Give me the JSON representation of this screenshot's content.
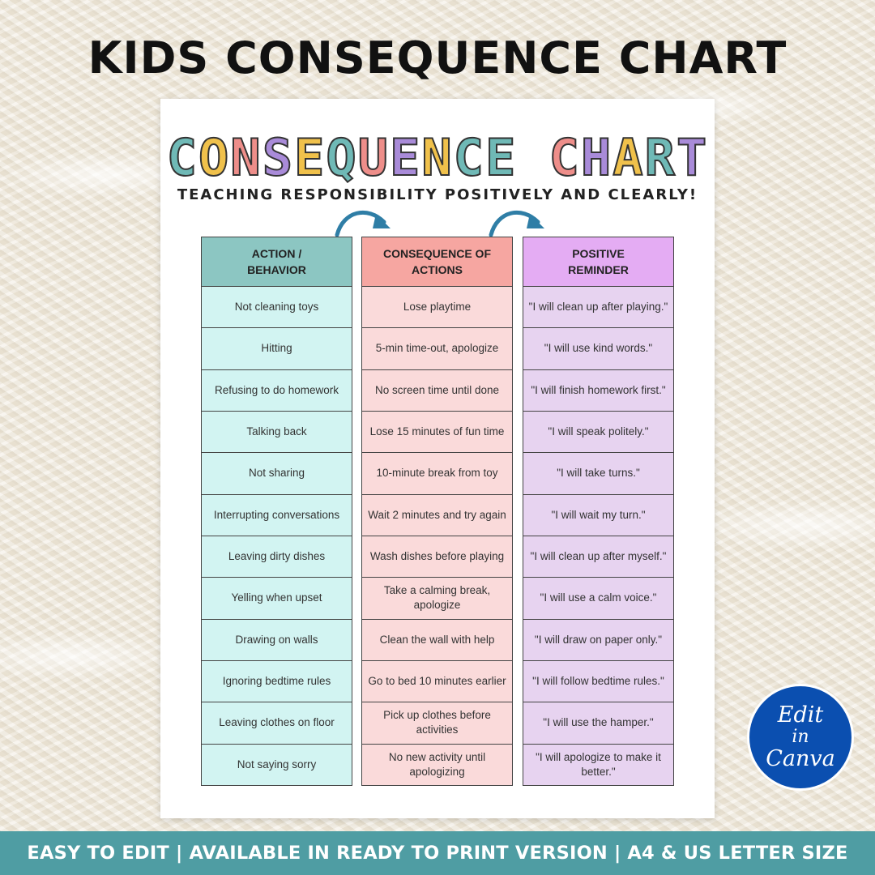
{
  "header": {
    "title": "KIDS CONSEQUENCE CHART"
  },
  "sheet": {
    "title": "CONSEQUENCE CHART",
    "title_colors": [
      "#6fb9b6",
      "#f0c14b",
      "#ee8e8a",
      "#a98bd9",
      "#f0c14b",
      "#6fb9b6",
      "#ee8e8a",
      "#a98bd9",
      "#f0c14b",
      "#6fb9b6",
      "#6fb9b6",
      "#ee8e8a",
      "#a98bd9",
      "#f0c14b",
      "#6fb9b6",
      "#a98bd9",
      "#ee8e8a"
    ],
    "subtitle": "TEACHING RESPONSIBILITY POSITIVELY AND CLEARLY!",
    "arrow_color": "#2f7ea6"
  },
  "columns": [
    {
      "header": "ACTION /\nBEHAVIOR",
      "header_color": "#8cc6c2",
      "cell_color": "#d2f4f2",
      "cells": [
        "Not cleaning toys",
        "Hitting",
        "Refusing to do homework",
        "Talking back",
        "Not sharing",
        "Interrupting conversations",
        "Leaving dirty dishes",
        "Yelling when upset",
        "Drawing on walls",
        "Ignoring bedtime rules",
        "Leaving clothes on floor",
        "Not saying sorry"
      ]
    },
    {
      "header": "CONSEQUENCE OF\nACTIONS",
      "header_color": "#f6a6a1",
      "cell_color": "#fadada",
      "cells": [
        "Lose playtime",
        "5-min time-out, apologize",
        "No screen time until done",
        "Lose 15 minutes of fun time",
        "10-minute break from toy",
        "Wait 2 minutes and try again",
        "Wash dishes before playing",
        "Take a calming break, apologize",
        "Clean the wall with help",
        "Go to bed 10 minutes earlier",
        "Pick up clothes before activities",
        "No new activity until apologizing"
      ]
    },
    {
      "header": "POSITIVE\nREMINDER",
      "header_color": "#e4acf3",
      "cell_color": "#e7d3f0",
      "cells": [
        "\"I will clean up after playing.\"",
        "\"I will use kind words.\"",
        "\"I will finish homework first.\"",
        "\"I will speak politely.\"",
        "\"I will take turns.\"",
        "\"I will wait my turn.\"",
        "\"I will clean up after myself.\"",
        "\"I will use a calm voice.\"",
        "\"I will draw on paper only.\"",
        "\"I will follow bedtime rules.\"",
        "\"I will use the hamper.\"",
        "\"I will apologize to make it better.\""
      ]
    }
  ],
  "badge": {
    "line1": "Edit",
    "line2": "in",
    "line3": "Canva",
    "color": "#0b4fb0"
  },
  "footer": {
    "text": "EASY TO EDIT | AVAILABLE IN READY TO PRINT VERSION | A4 & US LETTER SIZE",
    "color": "#4f9da3"
  }
}
